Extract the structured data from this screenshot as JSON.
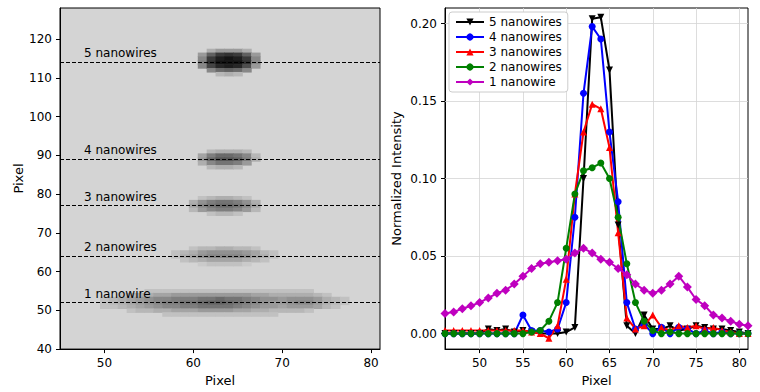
{
  "chart_data": [
    {
      "type": "heatmap",
      "x_label": "Pixel",
      "y_label": "Pixel",
      "xlim": [
        45,
        81
      ],
      "ylim": [
        40,
        128
      ],
      "xticks": [
        50,
        60,
        70,
        80
      ],
      "yticks": [
        40,
        50,
        60,
        70,
        80,
        90,
        100,
        110,
        120
      ],
      "grid": false,
      "annotations": [
        {
          "y": 114,
          "text": "5 nanowires",
          "line_style": "dashed"
        },
        {
          "y": 89,
          "text": "4 nanowires",
          "line_style": "dashed"
        },
        {
          "y": 77,
          "text": "3 nanowires",
          "line_style": "dashed"
        },
        {
          "y": 64,
          "text": "2 nanowires",
          "line_style": "dashed"
        },
        {
          "y": 52,
          "text": "1 nanowire",
          "line_style": "dashed"
        }
      ],
      "cells": [
        {
          "y": 117,
          "x": [
            62,
            63,
            64,
            65,
            66
          ],
          "values": [
            0.2,
            0.3,
            0.3,
            0.3,
            0.2
          ]
        },
        {
          "y": 116,
          "x": [
            61,
            62,
            63,
            64,
            65,
            66,
            67
          ],
          "values": [
            0.3,
            0.6,
            0.8,
            0.85,
            0.8,
            0.6,
            0.3
          ]
        },
        {
          "y": 115,
          "x": [
            61,
            62,
            63,
            64,
            65,
            66,
            67
          ],
          "values": [
            0.4,
            0.8,
            0.95,
            1,
            0.95,
            0.8,
            0.4
          ]
        },
        {
          "y": 114,
          "x": [
            61,
            62,
            63,
            64,
            65,
            66,
            67
          ],
          "values": [
            0.45,
            0.85,
            1,
            1,
            1,
            0.85,
            0.4
          ]
        },
        {
          "y": 113,
          "x": [
            61,
            62,
            63,
            64,
            65,
            66,
            67
          ],
          "values": [
            0.4,
            0.75,
            0.9,
            0.95,
            0.9,
            0.7,
            0.3
          ]
        },
        {
          "y": 112,
          "x": [
            62,
            63,
            64,
            65,
            66
          ],
          "values": [
            0.4,
            0.55,
            0.6,
            0.55,
            0.4
          ]
        },
        {
          "y": 111,
          "x": [
            63,
            64,
            65
          ],
          "values": [
            0.15,
            0.2,
            0.15
          ]
        },
        {
          "y": 91,
          "x": [
            62,
            63,
            64,
            65,
            66
          ],
          "values": [
            0.15,
            0.2,
            0.2,
            0.2,
            0.15
          ]
        },
        {
          "y": 90,
          "x": [
            61,
            62,
            63,
            64,
            65,
            66,
            67
          ],
          "values": [
            0.25,
            0.45,
            0.55,
            0.55,
            0.5,
            0.4,
            0.15
          ]
        },
        {
          "y": 89,
          "x": [
            61,
            62,
            63,
            64,
            65,
            66,
            67
          ],
          "values": [
            0.3,
            0.55,
            0.65,
            0.65,
            0.6,
            0.45,
            0.2
          ]
        },
        {
          "y": 88,
          "x": [
            61,
            62,
            63,
            64,
            65,
            66
          ],
          "values": [
            0.2,
            0.4,
            0.5,
            0.5,
            0.45,
            0.3
          ]
        },
        {
          "y": 87,
          "x": [
            62,
            63,
            64,
            65
          ],
          "values": [
            0.15,
            0.2,
            0.2,
            0.15
          ]
        },
        {
          "y": 79,
          "x": [
            61,
            62,
            63,
            64,
            65,
            66
          ],
          "values": [
            0.1,
            0.15,
            0.2,
            0.2,
            0.15,
            0.1
          ]
        },
        {
          "y": 78,
          "x": [
            60,
            61,
            62,
            63,
            64,
            65,
            66,
            67
          ],
          "values": [
            0.2,
            0.35,
            0.45,
            0.5,
            0.5,
            0.45,
            0.35,
            0.2
          ]
        },
        {
          "y": 77,
          "x": [
            60,
            61,
            62,
            63,
            64,
            65,
            66,
            67
          ],
          "values": [
            0.25,
            0.4,
            0.5,
            0.55,
            0.55,
            0.5,
            0.4,
            0.25
          ]
        },
        {
          "y": 76,
          "x": [
            60,
            61,
            62,
            63,
            64,
            65,
            66,
            67
          ],
          "values": [
            0.15,
            0.3,
            0.4,
            0.45,
            0.45,
            0.4,
            0.3,
            0.15
          ]
        },
        {
          "y": 75,
          "x": [
            62,
            63,
            64,
            65
          ],
          "values": [
            0.1,
            0.15,
            0.15,
            0.1
          ]
        },
        {
          "y": 66,
          "x": [
            60,
            61,
            62,
            63,
            64,
            65,
            66,
            67
          ],
          "values": [
            0.1,
            0.15,
            0.15,
            0.2,
            0.2,
            0.15,
            0.15,
            0.1
          ]
        },
        {
          "y": 65,
          "x": [
            58,
            59,
            60,
            61,
            62,
            63,
            64,
            65,
            66,
            67,
            68,
            69
          ],
          "values": [
            0.1,
            0.15,
            0.2,
            0.3,
            0.35,
            0.35,
            0.35,
            0.35,
            0.3,
            0.25,
            0.15,
            0.1
          ]
        },
        {
          "y": 64,
          "x": [
            58,
            59,
            60,
            61,
            62,
            63,
            64,
            65,
            66,
            67,
            68,
            69
          ],
          "values": [
            0.1,
            0.2,
            0.25,
            0.35,
            0.4,
            0.4,
            0.4,
            0.4,
            0.35,
            0.25,
            0.2,
            0.1
          ]
        },
        {
          "y": 63,
          "x": [
            59,
            60,
            61,
            62,
            63,
            64,
            65,
            66,
            67,
            68
          ],
          "values": [
            0.1,
            0.15,
            0.2,
            0.25,
            0.25,
            0.25,
            0.25,
            0.2,
            0.15,
            0.1
          ]
        },
        {
          "y": 62,
          "x": [
            61,
            62,
            63,
            64,
            65,
            66
          ],
          "values": [
            0.05,
            0.1,
            0.1,
            0.1,
            0.1,
            0.05
          ]
        },
        {
          "y": 55,
          "x": [
            55,
            56,
            57,
            58,
            59,
            60,
            61,
            62,
            63,
            64,
            65,
            66,
            67,
            68,
            69,
            70,
            71,
            72,
            73
          ],
          "values": [
            0.1,
            0.1,
            0.1,
            0.1,
            0.1,
            0.1,
            0.1,
            0.1,
            0.1,
            0.1,
            0.1,
            0.1,
            0.1,
            0.1,
            0.1,
            0.1,
            0.1,
            0.1,
            0.1
          ]
        },
        {
          "y": 54,
          "x": [
            52,
            53,
            54,
            55,
            56,
            57,
            58,
            59,
            60,
            61,
            62,
            63,
            64,
            65,
            66,
            67,
            68,
            69,
            70,
            71,
            72,
            73,
            74,
            75
          ],
          "values": [
            0.1,
            0.15,
            0.2,
            0.2,
            0.25,
            0.25,
            0.3,
            0.3,
            0.3,
            0.3,
            0.3,
            0.3,
            0.3,
            0.3,
            0.3,
            0.25,
            0.25,
            0.2,
            0.2,
            0.2,
            0.2,
            0.2,
            0.15,
            0.1
          ]
        },
        {
          "y": 53,
          "x": [
            50,
            51,
            52,
            53,
            54,
            55,
            56,
            57,
            58,
            59,
            60,
            61,
            62,
            63,
            64,
            65,
            66,
            67,
            68,
            69,
            70,
            71,
            72,
            73,
            74,
            75,
            76,
            77
          ],
          "values": [
            0.1,
            0.15,
            0.2,
            0.25,
            0.3,
            0.35,
            0.4,
            0.4,
            0.45,
            0.45,
            0.45,
            0.5,
            0.5,
            0.55,
            0.5,
            0.5,
            0.45,
            0.4,
            0.35,
            0.35,
            0.3,
            0.35,
            0.35,
            0.35,
            0.3,
            0.2,
            0.15,
            0.1
          ]
        },
        {
          "y": 52,
          "x": [
            50,
            51,
            52,
            53,
            54,
            55,
            56,
            57,
            58,
            59,
            60,
            61,
            62,
            63,
            64,
            65,
            66,
            67,
            68,
            69,
            70,
            71,
            72,
            73,
            74,
            75,
            76,
            77
          ],
          "values": [
            0.1,
            0.15,
            0.2,
            0.25,
            0.3,
            0.35,
            0.4,
            0.45,
            0.45,
            0.5,
            0.5,
            0.55,
            0.6,
            0.6,
            0.55,
            0.5,
            0.45,
            0.4,
            0.35,
            0.3,
            0.3,
            0.35,
            0.4,
            0.4,
            0.3,
            0.2,
            0.15,
            0.1
          ]
        },
        {
          "y": 51,
          "x": [
            50,
            51,
            52,
            53,
            54,
            55,
            56,
            57,
            58,
            59,
            60,
            61,
            62,
            63,
            64,
            65,
            66,
            67,
            68,
            69,
            70,
            71,
            72,
            73,
            74,
            75,
            76
          ],
          "values": [
            0.1,
            0.1,
            0.15,
            0.2,
            0.25,
            0.3,
            0.35,
            0.4,
            0.4,
            0.45,
            0.45,
            0.5,
            0.5,
            0.5,
            0.5,
            0.45,
            0.4,
            0.35,
            0.3,
            0.3,
            0.25,
            0.3,
            0.3,
            0.3,
            0.25,
            0.15,
            0.1
          ]
        },
        {
          "y": 50,
          "x": [
            53,
            54,
            55,
            56,
            57,
            58,
            59,
            60,
            61,
            62,
            63,
            64,
            65,
            66,
            67,
            68,
            69,
            70,
            71,
            72,
            73
          ],
          "values": [
            0.1,
            0.15,
            0.15,
            0.2,
            0.2,
            0.25,
            0.25,
            0.25,
            0.3,
            0.3,
            0.3,
            0.3,
            0.25,
            0.25,
            0.2,
            0.2,
            0.15,
            0.15,
            0.15,
            0.15,
            0.1
          ]
        },
        {
          "y": 49,
          "x": [
            57,
            58,
            59,
            60,
            61,
            62,
            63,
            64,
            65,
            66,
            67,
            68,
            69
          ],
          "values": [
            0.1,
            0.1,
            0.1,
            0.1,
            0.1,
            0.1,
            0.1,
            0.1,
            0.1,
            0.1,
            0.1,
            0.1,
            0.1
          ]
        }
      ]
    },
    {
      "type": "line",
      "x_label": "Pixel",
      "y_label": "Normalized Intensity",
      "xlim": [
        46,
        81
      ],
      "ylim": [
        -0.01,
        0.21
      ],
      "xticks": [
        50,
        55,
        60,
        65,
        70,
        75,
        80
      ],
      "yticks": [
        {
          "value": 0,
          "label": "0.00"
        },
        {
          "value": 0.05,
          "label": "0.05"
        },
        {
          "value": 0.1,
          "label": "0.10"
        },
        {
          "value": 0.15,
          "label": "0.15"
        },
        {
          "value": 0.2,
          "label": "0.20"
        }
      ],
      "grid": true,
      "legend": "upper left",
      "line_style": "solid",
      "x": [
        46,
        47,
        48,
        49,
        50,
        51,
        52,
        53,
        54,
        55,
        56,
        57,
        58,
        59,
        60,
        61,
        62,
        63,
        64,
        65,
        66,
        67,
        68,
        69,
        70,
        71,
        72,
        73,
        74,
        75,
        76,
        77,
        78,
        79,
        80,
        81
      ],
      "series": [
        {
          "name": "5 nanowires",
          "color": "#000000",
          "marker": "triangle_down",
          "values": [
            0,
            0,
            0,
            0,
            0,
            0.003,
            0.002,
            0.003,
            0.001,
            0.002,
            0.001,
            0,
            0,
            0,
            0.001,
            0.004,
            0.1,
            0.203,
            0.204,
            0.17,
            0.07,
            0.005,
            0,
            0.012,
            0.003,
            0.003,
            0.005,
            0.002,
            0.003,
            0.005,
            0.004,
            0.003,
            0.003,
            0.002,
            0.001,
            0
          ]
        },
        {
          "name": "4 nanowires",
          "color": "#0000ff",
          "marker": "circle",
          "values": [
            0,
            0,
            0,
            0,
            0,
            0,
            0,
            0,
            0,
            0.012,
            0.002,
            0.002,
            0.001,
            0.003,
            0.02,
            0.075,
            0.155,
            0.198,
            0.19,
            0.13,
            0.085,
            0.02,
            0.003,
            0.006,
            0,
            0.004,
            0,
            0.004,
            0.003,
            0,
            0.002,
            0,
            0.001,
            0,
            0,
            0
          ]
        },
        {
          "name": "3 nanowires",
          "color": "#ff0000",
          "marker": "triangle",
          "values": [
            0.002,
            0.002,
            0.002,
            0.002,
            0.002,
            0.002,
            0.002,
            0.002,
            0.002,
            0.002,
            0.001,
            0,
            -0.003,
            0.005,
            0.035,
            0.09,
            0.13,
            0.148,
            0.145,
            0.12,
            0.065,
            0.01,
            0.003,
            0.005,
            0.012,
            0.004,
            0.002,
            0.005,
            0.004,
            0.005,
            0.003,
            0.004,
            0.002,
            0.001,
            0,
            0
          ]
        },
        {
          "name": "2 nanowires",
          "color": "#008000",
          "marker": "circle",
          "values": [
            0,
            0,
            0,
            0,
            0,
            0,
            0,
            0,
            0,
            0,
            0.001,
            0.002,
            0.008,
            0.02,
            0.055,
            0.09,
            0.105,
            0.107,
            0.11,
            0.1,
            0.075,
            0.045,
            0.02,
            0.008,
            0.002,
            0,
            0.001,
            0,
            0,
            0,
            0,
            0,
            0,
            0,
            0,
            0
          ]
        },
        {
          "name": "1 nanowire",
          "color": "#bf00bf",
          "marker": "diamond",
          "values": [
            0.013,
            0.014,
            0.016,
            0.018,
            0.02,
            0.023,
            0.026,
            0.028,
            0.032,
            0.037,
            0.042,
            0.045,
            0.046,
            0.047,
            0.048,
            0.052,
            0.055,
            0.052,
            0.048,
            0.046,
            0.042,
            0.038,
            0.032,
            0.028,
            0.026,
            0.028,
            0.032,
            0.037,
            0.03,
            0.022,
            0.018,
            0.012,
            0.01,
            0.008,
            0.006,
            0.005
          ]
        }
      ]
    }
  ]
}
